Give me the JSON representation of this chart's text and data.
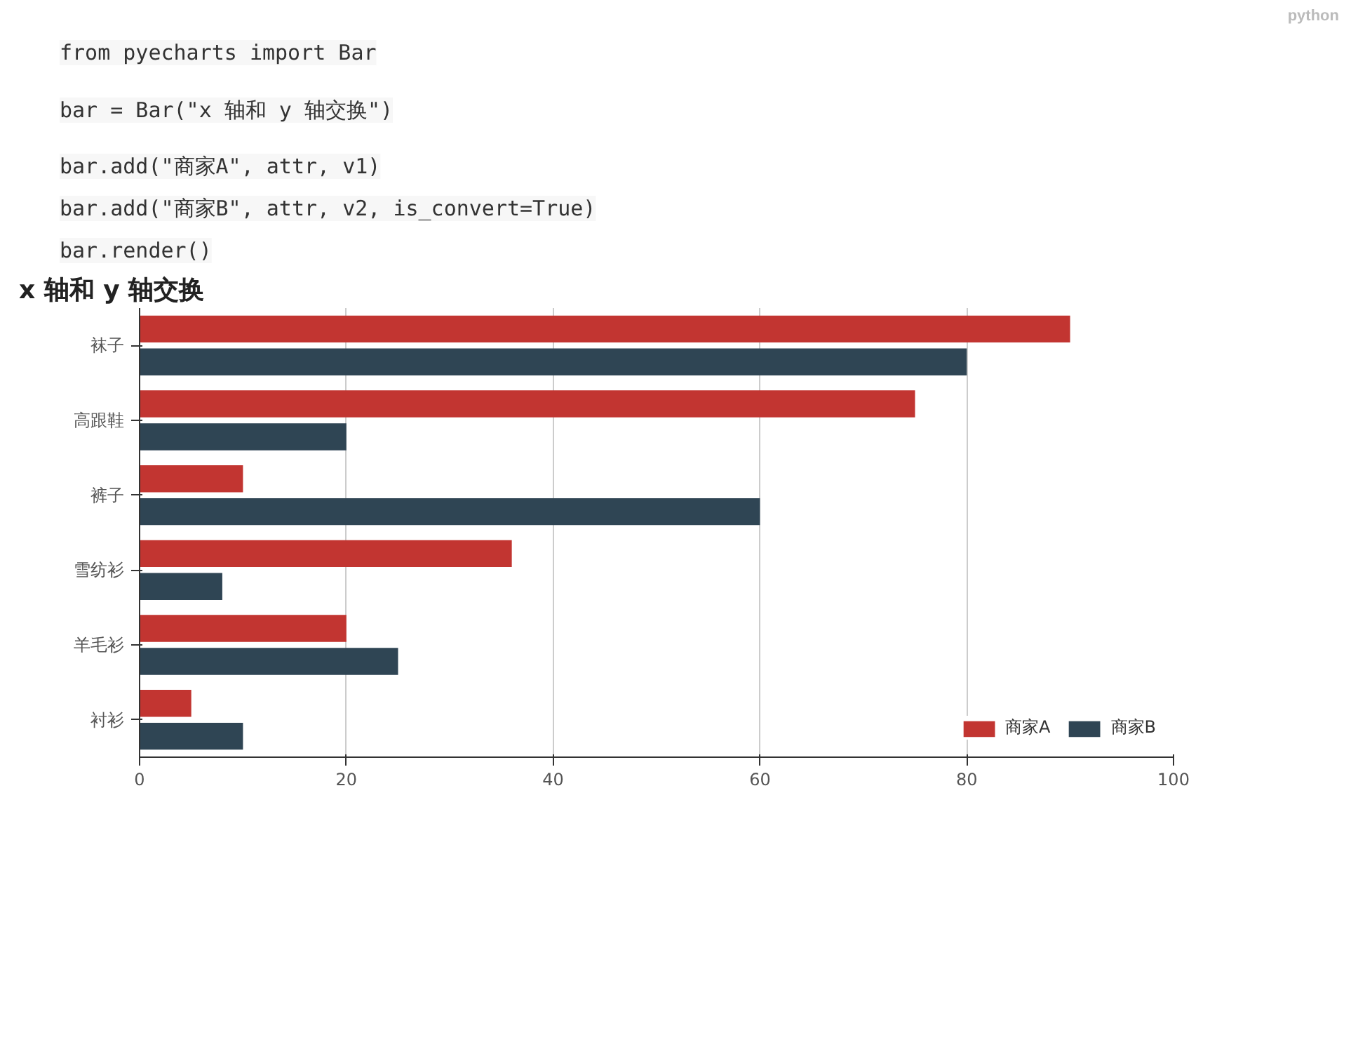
{
  "chart_data": {
    "type": "bar",
    "orientation": "horizontal",
    "title": "x 轴和 y 轴交换",
    "annotations": [
      "python",
      "from pyecharts import Bar",
      "bar = Bar(\"x 轴和 y 轴交换\")",
      "bar.add(\"商家A\", attr, v1)",
      "bar.add(\"商家B\", attr, v2, is_convert=True)",
      "bar.render()"
    ],
    "categories": [
      "袜子",
      "高跟鞋",
      "裤子",
      "雪纺衫",
      "羊毛衫",
      "衬衫"
    ],
    "series": [
      {
        "name": "商家A",
        "color": "#c23531",
        "values": [
          90,
          75,
          10,
          36,
          20,
          5
        ]
      },
      {
        "name": "商家B",
        "color": "#2f4554",
        "values": [
          80,
          20,
          60,
          8,
          25,
          10
        ]
      }
    ],
    "xlim": [
      0,
      100
    ],
    "xticks": [
      0,
      20,
      40,
      60,
      80,
      100
    ],
    "grid": "x",
    "legend": "bottom right"
  }
}
